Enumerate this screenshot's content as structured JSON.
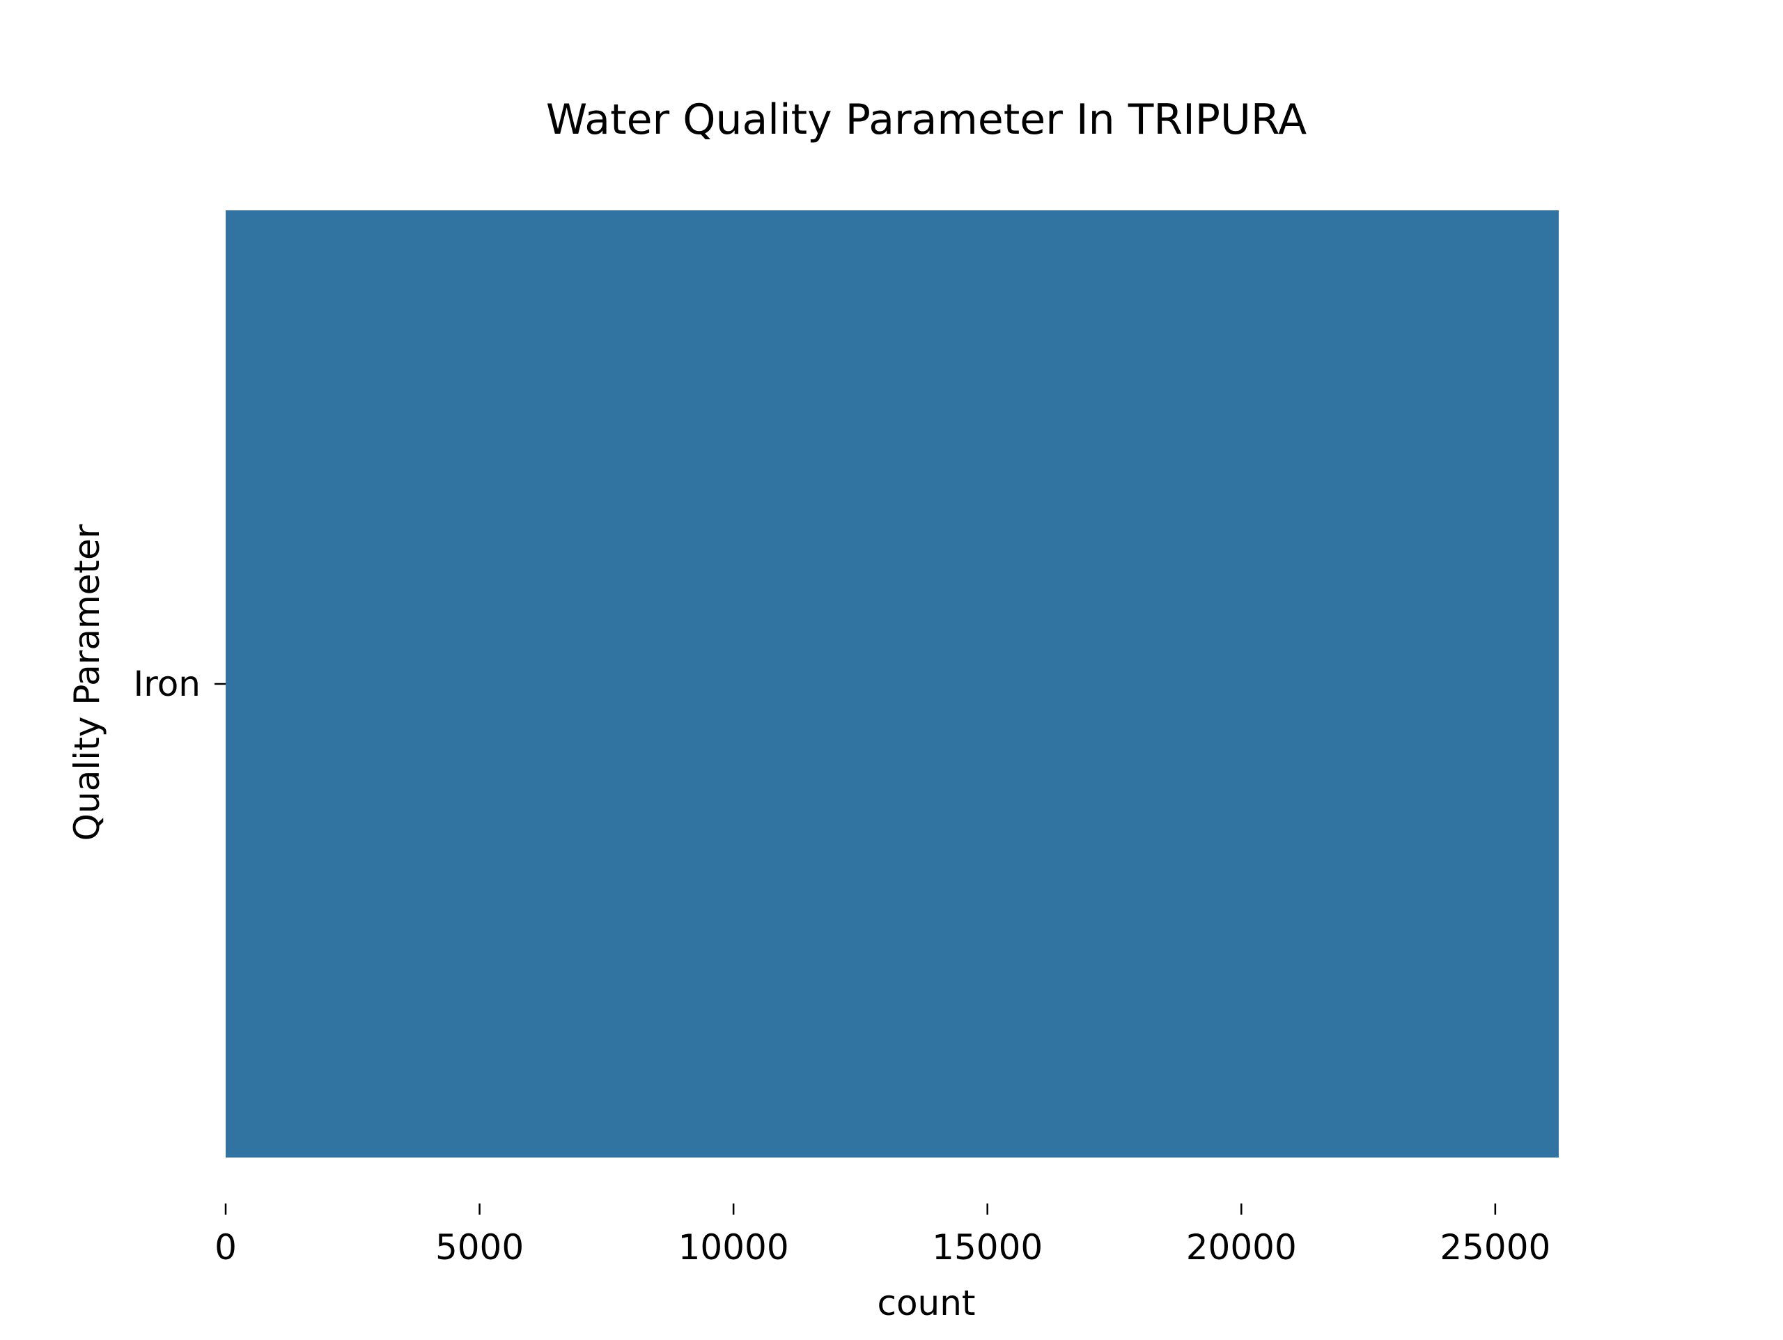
{
  "chart_data": {
    "type": "bar",
    "orientation": "horizontal",
    "title": "Water Quality Parameter In TRIPURA",
    "xlabel": "count",
    "ylabel": "Quality Parameter",
    "categories": [
      "Iron"
    ],
    "values": [
      26250
    ],
    "xlim": [
      0,
      26250
    ],
    "xticks": [
      0,
      5000,
      10000,
      15000,
      20000,
      25000
    ],
    "grid": false,
    "legend": "none",
    "bar_color": "#3274a1"
  }
}
